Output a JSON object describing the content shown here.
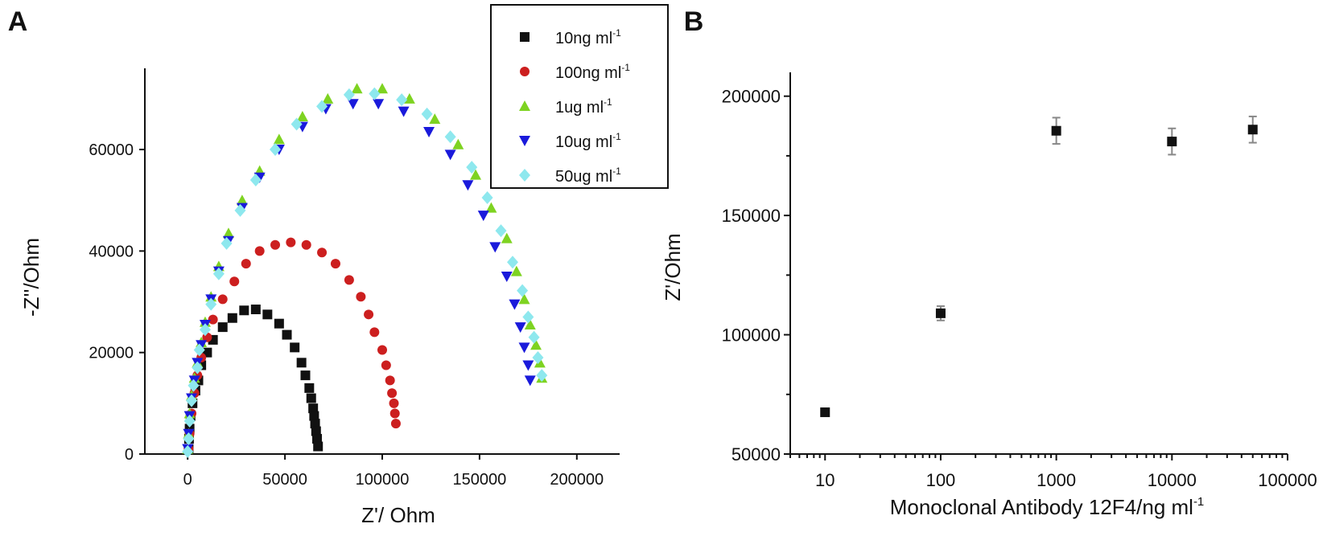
{
  "chart_data": [
    {
      "panel_label": "A",
      "type": "scatter",
      "xlabel": "Z'/ Ohm",
      "ylabel": "-Z''/Ohm",
      "xlim": [
        -22000,
        222000
      ],
      "ylim": [
        0,
        76000
      ],
      "xticks": [
        0,
        50000,
        100000,
        150000,
        200000
      ],
      "yticks": [
        0,
        20000,
        40000,
        60000
      ],
      "grid": false,
      "legend_position": "top-right",
      "series": [
        {
          "name": "10ng ml",
          "sup": "-1",
          "color": "#111111",
          "marker": "square",
          "points": [
            [
              500,
              1000
            ],
            [
              700,
              3000
            ],
            [
              1000,
              5000
            ],
            [
              1500,
              7500
            ],
            [
              2500,
              10000
            ],
            [
              4000,
              12500
            ],
            [
              5500,
              14500
            ],
            [
              7000,
              17500
            ],
            [
              10000,
              20000
            ],
            [
              13000,
              22500
            ],
            [
              18000,
              25000
            ],
            [
              23000,
              26800
            ],
            [
              29000,
              28300
            ],
            [
              35000,
              28500
            ],
            [
              41000,
              27500
            ],
            [
              47000,
              25700
            ],
            [
              51000,
              23500
            ],
            [
              55000,
              21000
            ],
            [
              58500,
              18000
            ],
            [
              60500,
              15500
            ],
            [
              62500,
              13000
            ],
            [
              63500,
              11000
            ],
            [
              64500,
              9000
            ],
            [
              65000,
              7500
            ],
            [
              65500,
              6000
            ],
            [
              66000,
              4500
            ],
            [
              66500,
              3000
            ],
            [
              67000,
              1500
            ]
          ]
        },
        {
          "name": "100ng ml",
          "sup": "-1",
          "color": "#cc1f1f",
          "marker": "circle",
          "points": [
            [
              500,
              1000
            ],
            [
              1000,
              4000
            ],
            [
              2000,
              8000
            ],
            [
              3500,
              12000
            ],
            [
              5000,
              15500
            ],
            [
              7000,
              19000
            ],
            [
              10000,
              23000
            ],
            [
              13000,
              26500
            ],
            [
              18000,
              30500
            ],
            [
              24000,
              34000
            ],
            [
              30000,
              37500
            ],
            [
              37000,
              40000
            ],
            [
              45000,
              41200
            ],
            [
              53000,
              41700
            ],
            [
              61000,
              41200
            ],
            [
              69000,
              39700
            ],
            [
              76000,
              37500
            ],
            [
              83000,
              34300
            ],
            [
              89000,
              31000
            ],
            [
              93000,
              27500
            ],
            [
              96000,
              24000
            ],
            [
              100000,
              20500
            ],
            [
              102000,
              17500
            ],
            [
              104000,
              14500
            ],
            [
              105000,
              12000
            ],
            [
              106000,
              10000
            ],
            [
              106500,
              8000
            ],
            [
              107000,
              6000
            ]
          ]
        },
        {
          "name": "1ug ml",
          "sup": "-1",
          "color": "#7ed321",
          "marker": "triangle-up",
          "points": [
            [
              0,
              1000
            ],
            [
              500,
              4000
            ],
            [
              1000,
              8000
            ],
            [
              2000,
              11500
            ],
            [
              3500,
              15000
            ],
            [
              5000,
              18000
            ],
            [
              7000,
              22000
            ],
            [
              9000,
              26000
            ],
            [
              12000,
              31000
            ],
            [
              16000,
              37000
            ],
            [
              21000,
              43500
            ],
            [
              28000,
              50000
            ],
            [
              37000,
              55800
            ],
            [
              47000,
              62000
            ],
            [
              59000,
              66500
            ],
            [
              72000,
              70000
            ],
            [
              87000,
              72000
            ],
            [
              100000,
              72000
            ],
            [
              114000,
              70000
            ],
            [
              127000,
              66000
            ],
            [
              139000,
              61000
            ],
            [
              148000,
              55000
            ],
            [
              156000,
              48500
            ],
            [
              164000,
              42500
            ],
            [
              169000,
              36000
            ],
            [
              173000,
              30500
            ],
            [
              176000,
              25500
            ],
            [
              179000,
              21500
            ],
            [
              181000,
              18000
            ],
            [
              182000,
              15000
            ]
          ]
        },
        {
          "name": "10ug ml",
          "sup": "-1",
          "color": "#1a1adb",
          "marker": "triangle-down",
          "points": [
            [
              0,
              1000
            ],
            [
              500,
              4000
            ],
            [
              1000,
              7500
            ],
            [
              2000,
              11000
            ],
            [
              3500,
              14500
            ],
            [
              5000,
              18000
            ],
            [
              7000,
              21500
            ],
            [
              9000,
              25500
            ],
            [
              12000,
              30500
            ],
            [
              16000,
              36000
            ],
            [
              21000,
              42000
            ],
            [
              28000,
              48500
            ],
            [
              37000,
              54500
            ],
            [
              47000,
              60000
            ],
            [
              59000,
              64500
            ],
            [
              71000,
              68000
            ],
            [
              85000,
              69000
            ],
            [
              98000,
              69000
            ],
            [
              111000,
              67500
            ],
            [
              124000,
              63500
            ],
            [
              135000,
              59000
            ],
            [
              144000,
              53000
            ],
            [
              152000,
              47000
            ],
            [
              158000,
              40800
            ],
            [
              164000,
              35000
            ],
            [
              168000,
              29500
            ],
            [
              171000,
              25000
            ],
            [
              173000,
              21000
            ],
            [
              175000,
              17500
            ],
            [
              176000,
              14500
            ]
          ]
        },
        {
          "name": "50ug ml",
          "sup": "-1",
          "color": "#8ee8ee",
          "marker": "diamond",
          "points": [
            [
              0,
              500
            ],
            [
              500,
              3000
            ],
            [
              1000,
              6500
            ],
            [
              2000,
              10500
            ],
            [
              3000,
              13500
            ],
            [
              5000,
              17000
            ],
            [
              6000,
              20500
            ],
            [
              9000,
              24500
            ],
            [
              12000,
              29500
            ],
            [
              16000,
              35500
            ],
            [
              20000,
              41500
            ],
            [
              27000,
              48000
            ],
            [
              35000,
              54000
            ],
            [
              45000,
              60000
            ],
            [
              56000,
              65000
            ],
            [
              69000,
              68500
            ],
            [
              83000,
              70800
            ],
            [
              96000,
              71000
            ],
            [
              110000,
              69800
            ],
            [
              123000,
              67000
            ],
            [
              135000,
              62500
            ],
            [
              146000,
              56500
            ],
            [
              154000,
              50500
            ],
            [
              161000,
              44000
            ],
            [
              167000,
              37800
            ],
            [
              172000,
              32200
            ],
            [
              175000,
              27000
            ],
            [
              178000,
              23000
            ],
            [
              180000,
              19000
            ],
            [
              182000,
              15500
            ]
          ]
        }
      ]
    },
    {
      "panel_label": "B",
      "type": "scatter",
      "xscale": "log",
      "xlabel": "Monoclonal Antibody 12F4/ng ml",
      "xlabel_sup": "-1",
      "ylabel": "Z'/Ohm",
      "xlim": [
        5,
        100000
      ],
      "ylim": [
        50000,
        210000
      ],
      "xticks": [
        10,
        100,
        1000,
        10000,
        100000
      ],
      "xtick_labels": [
        "10",
        "100",
        "1000",
        "10000",
        "100000"
      ],
      "yticks": [
        50000,
        100000,
        150000,
        200000
      ],
      "grid": false,
      "series": [
        {
          "name": "Z'",
          "color": "#111111",
          "marker": "square",
          "points": [
            {
              "x": 10,
              "y": 67500,
              "err": 1500
            },
            {
              "x": 100,
              "y": 109000,
              "err": 3000
            },
            {
              "x": 1000,
              "y": 185500,
              "err": 5500
            },
            {
              "x": 10000,
              "y": 181000,
              "err": 5500
            },
            {
              "x": 50000,
              "y": 186000,
              "err": 5500
            }
          ]
        }
      ]
    }
  ]
}
